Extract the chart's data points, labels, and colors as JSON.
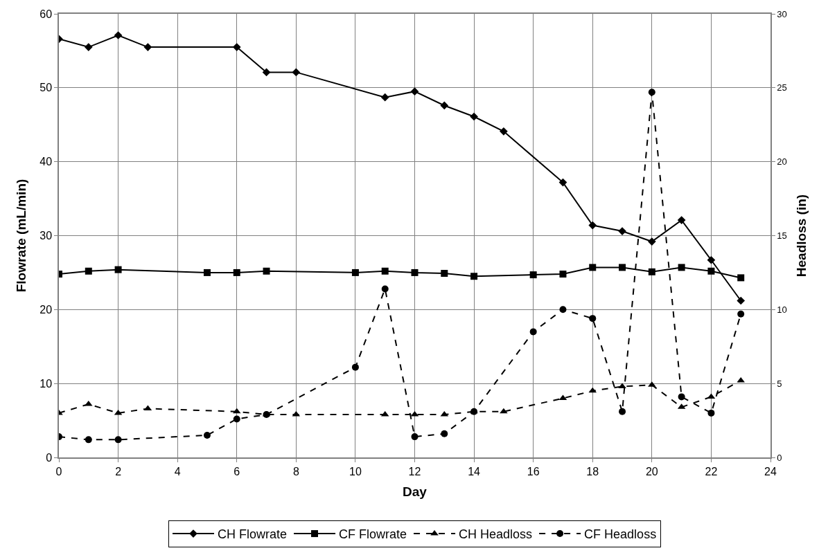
{
  "chart_data": {
    "type": "line",
    "xlabel": "Day",
    "ylabel": "Flowrate (mL/min)",
    "y2label": "Headloss (in)",
    "xlim": [
      0,
      24
    ],
    "xticks": [
      0,
      2,
      4,
      6,
      8,
      10,
      12,
      14,
      16,
      18,
      20,
      22,
      24
    ],
    "ylim": [
      0,
      60
    ],
    "yticks": [
      0,
      10,
      20,
      30,
      40,
      50,
      60
    ],
    "y2lim": [
      0,
      30
    ],
    "y2ticks": [
      0,
      5,
      10,
      15,
      20,
      25,
      30
    ],
    "grid": true,
    "legend": "bottom",
    "series": [
      {
        "name": "CH Flowrate",
        "color": "#000000",
        "marker": "diamond",
        "line_style": "solid",
        "x": [
          0,
          1,
          2,
          3,
          6,
          7,
          8,
          11,
          12,
          13,
          14,
          15,
          17,
          18,
          19,
          20,
          21,
          22,
          23
        ],
        "values": [
          56.6,
          55.5,
          57.1,
          55.5,
          55.5,
          52.1,
          52.1,
          48.7,
          49.5,
          47.6,
          46.1,
          44.1,
          37.2,
          31.4,
          30.6,
          29.2,
          32.1,
          26.7,
          21.2
        ]
      },
      {
        "name": "CF Flowrate",
        "color": "#000000",
        "marker": "square",
        "line_style": "solid",
        "x": [
          0,
          1,
          2,
          5,
          6,
          7,
          10,
          11,
          12,
          13,
          14,
          16,
          17,
          18,
          19,
          20,
          21,
          22,
          23
        ],
        "values": [
          24.8,
          25.2,
          25.4,
          25.0,
          25.0,
          25.2,
          25.0,
          25.2,
          25.0,
          24.9,
          24.5,
          24.7,
          24.8,
          25.7,
          25.7,
          25.1,
          25.7,
          25.2,
          24.3
        ]
      },
      {
        "name": "CH Headloss",
        "color": "#000000",
        "marker": "triangle",
        "line_style": "dashed",
        "axis": "y2",
        "x": [
          0,
          1,
          2,
          3,
          6,
          7,
          8,
          11,
          12,
          13,
          14,
          15,
          17,
          18,
          19,
          20,
          21,
          22,
          23
        ],
        "values": [
          3.0,
          3.6,
          3.0,
          3.3,
          3.1,
          2.9,
          2.9,
          2.9,
          2.9,
          2.9,
          3.1,
          3.1,
          4.0,
          4.5,
          4.8,
          4.9,
          3.4,
          4.1,
          5.2
        ]
      },
      {
        "name": "CF Headloss",
        "color": "#000000",
        "marker": "circle",
        "line_style": "dashed",
        "axis": "y2",
        "x": [
          0,
          1,
          2,
          5,
          6,
          7,
          10,
          11,
          12,
          13,
          14,
          16,
          17,
          18,
          19,
          20,
          21,
          22,
          23
        ],
        "values": [
          1.4,
          1.2,
          1.2,
          1.5,
          2.6,
          2.9,
          6.1,
          11.4,
          1.4,
          1.6,
          3.1,
          8.5,
          10.0,
          9.4,
          3.1,
          24.7,
          4.1,
          3.0,
          9.7
        ]
      }
    ]
  }
}
